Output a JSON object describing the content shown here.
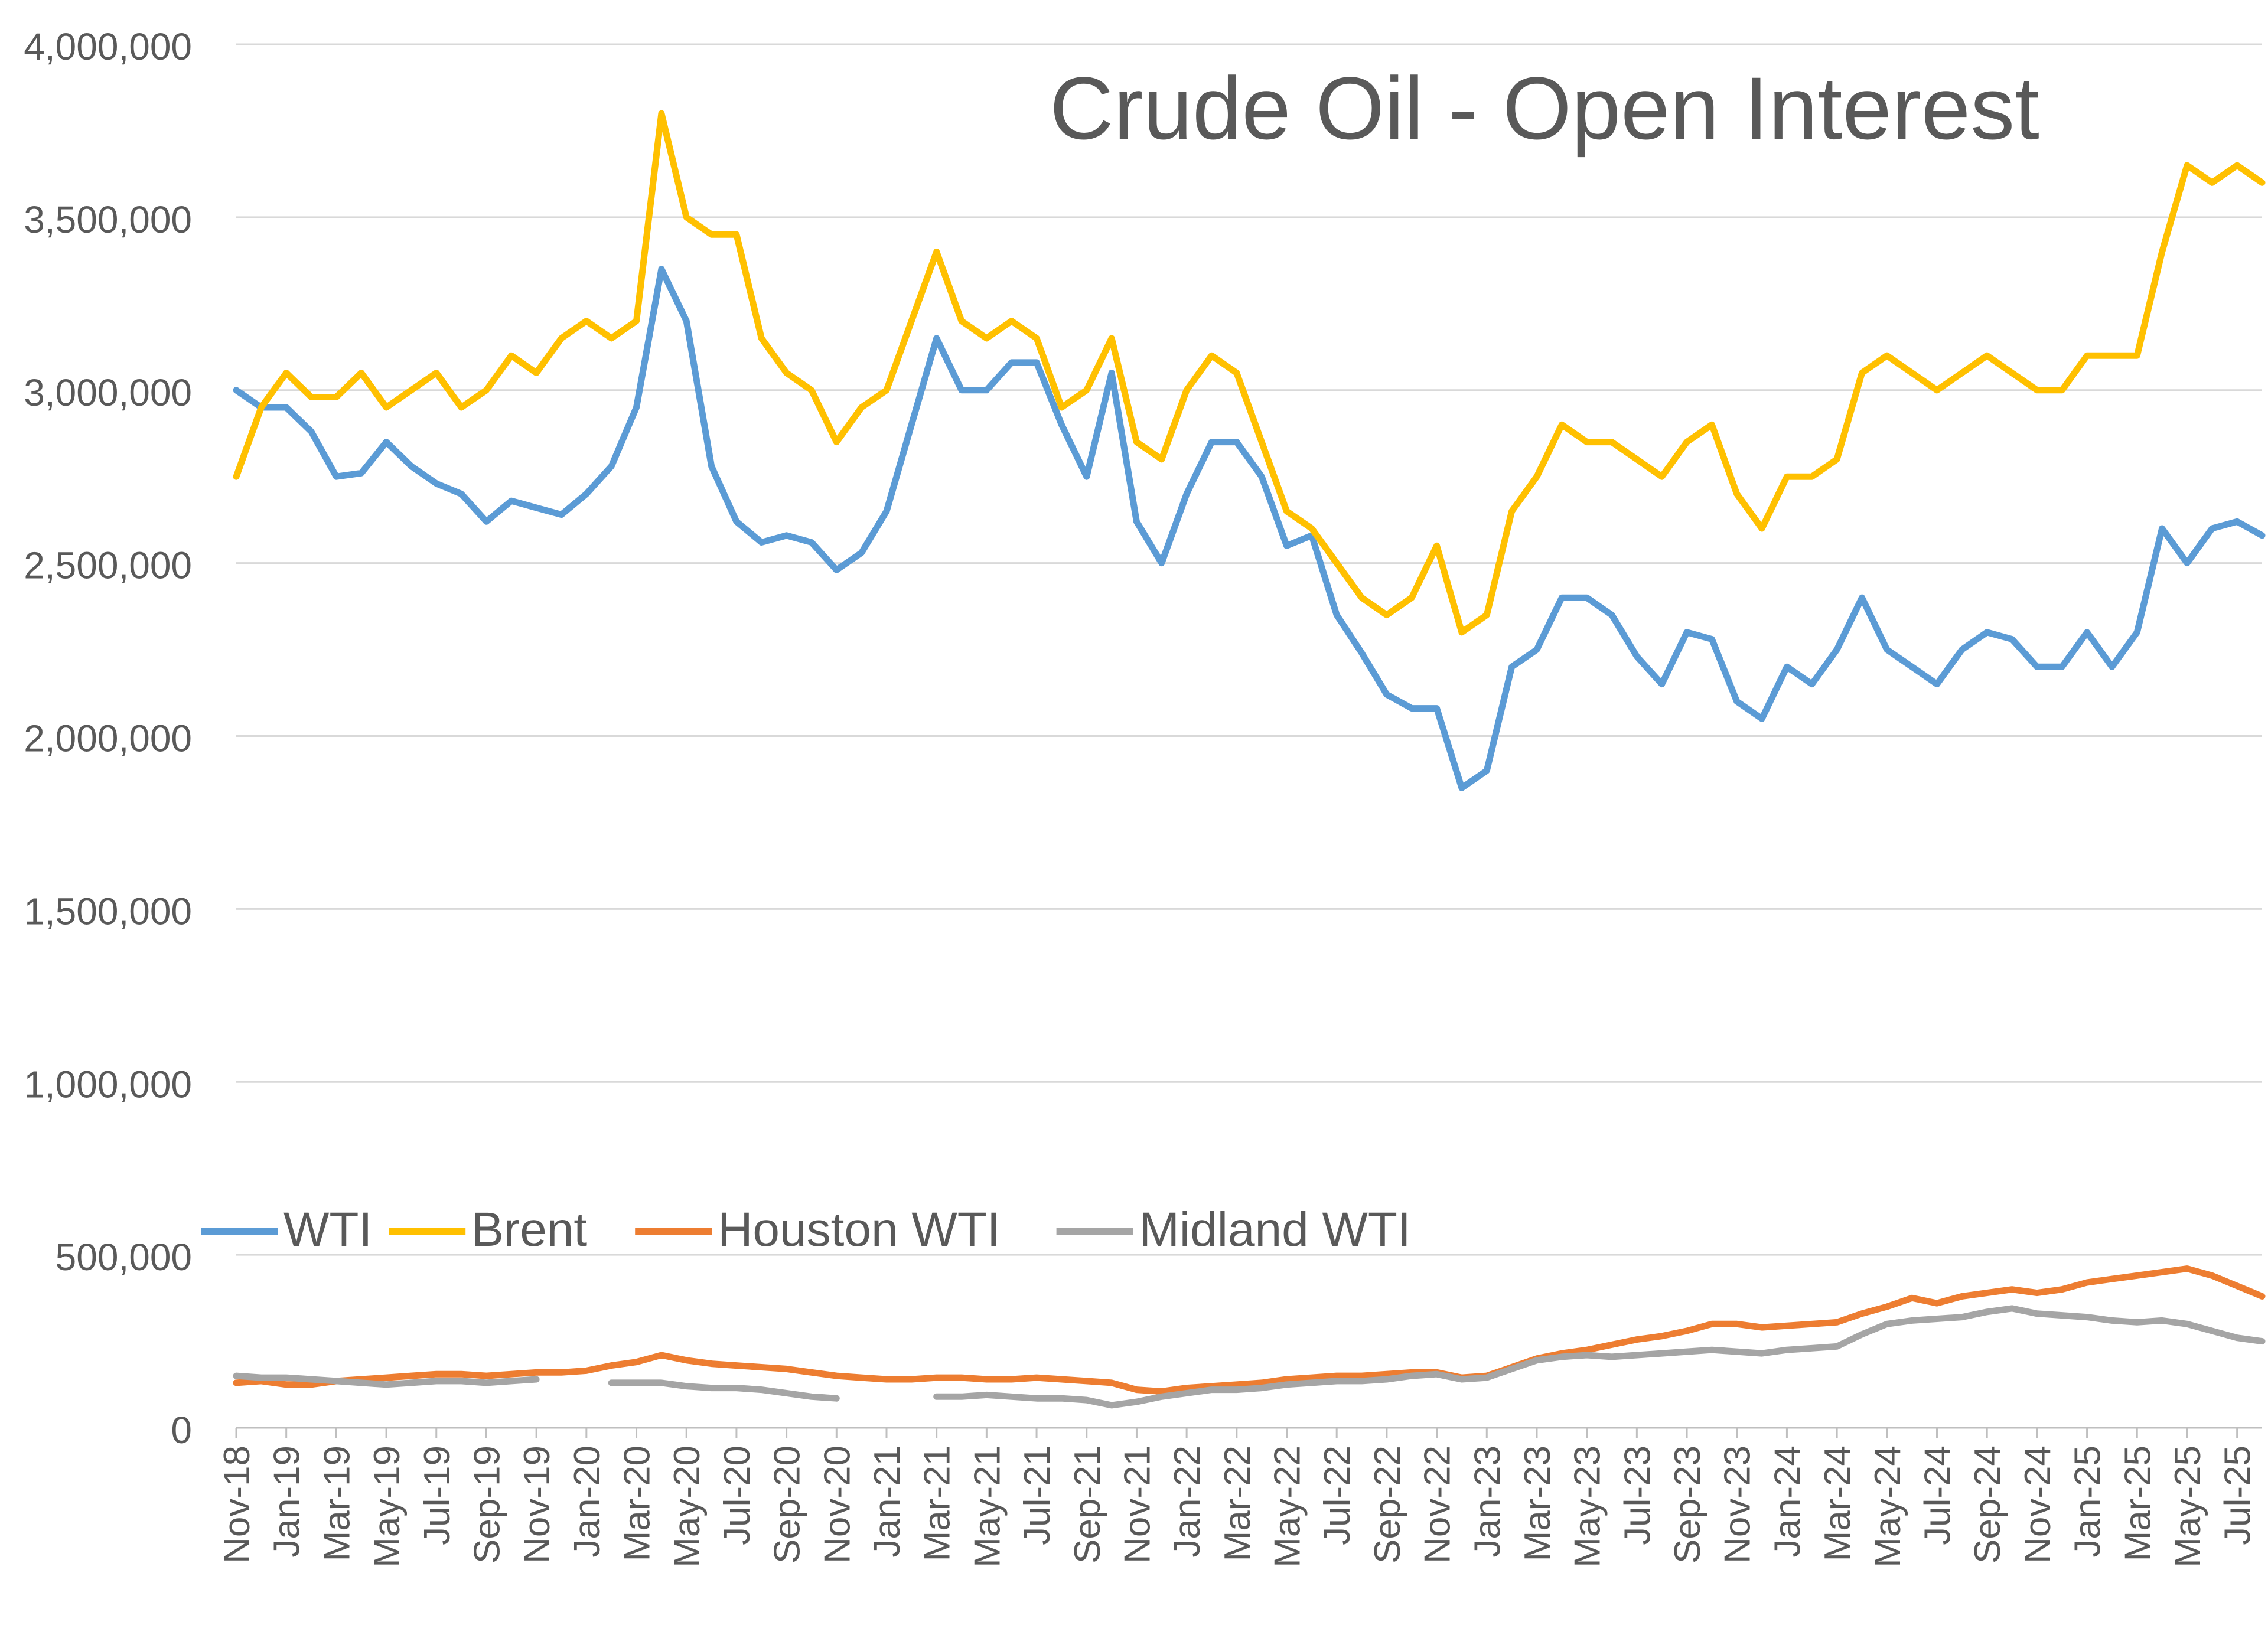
{
  "chart_data": {
    "type": "line",
    "title": "Crude Oil - Open Interest",
    "xlabel": "",
    "ylabel": "",
    "ylim": [
      0,
      4000000
    ],
    "yticks": [
      0,
      500000,
      1000000,
      1500000,
      2000000,
      2500000,
      3000000,
      3500000,
      4000000
    ],
    "ytick_labels": [
      "0",
      "500,000",
      "1,000,000",
      "1,500,000",
      "2,000,000",
      "2,500,000",
      "3,000,000",
      "3,500,000",
      "4,000,000"
    ],
    "x_start": "Nov-18",
    "x_end": "Aug-25",
    "xtick_labels": [
      "Nov-18",
      "Jan-19",
      "Mar-19",
      "May-19",
      "Jul-19",
      "Sep-19",
      "Nov-19",
      "Jan-20",
      "Mar-20",
      "May-20",
      "Jul-20",
      "Sep-20",
      "Nov-20",
      "Jan-21",
      "Mar-21",
      "May-21",
      "Jul-21",
      "Sep-21",
      "Nov-21",
      "Jan-22",
      "Mar-22",
      "May-22",
      "Jul-22",
      "Sep-22",
      "Nov-22",
      "Jan-23",
      "Mar-23",
      "May-23",
      "Jul-23",
      "Sep-23",
      "Nov-23",
      "Jan-24",
      "Mar-24",
      "May-24",
      "Jul-24",
      "Sep-24",
      "Nov-24",
      "Jan-25",
      "Mar-25",
      "May-25",
      "Jul-25"
    ],
    "grid": true,
    "legend_position": "lower-left",
    "series": [
      {
        "name": "WTI",
        "color": "#5B9BD5",
        "x": [
          "Nov-18",
          "Dec-18",
          "Jan-19",
          "Feb-19",
          "Mar-19",
          "Apr-19",
          "May-19",
          "Jun-19",
          "Jul-19",
          "Aug-19",
          "Sep-19",
          "Oct-19",
          "Nov-19",
          "Dec-19",
          "Jan-20",
          "Feb-20",
          "Mar-20",
          "Apr-20",
          "May-20",
          "Jun-20",
          "Jul-20",
          "Aug-20",
          "Sep-20",
          "Oct-20",
          "Nov-20",
          "Dec-20",
          "Jan-21",
          "Feb-21",
          "Mar-21",
          "Apr-21",
          "May-21",
          "Jun-21",
          "Jul-21",
          "Aug-21",
          "Sep-21",
          "Oct-21",
          "Nov-21",
          "Dec-21",
          "Jan-22",
          "Feb-22",
          "Mar-22",
          "Apr-22",
          "May-22",
          "Jun-22",
          "Jul-22",
          "Aug-22",
          "Sep-22",
          "Oct-22",
          "Nov-22",
          "Dec-22",
          "Jan-23",
          "Feb-23",
          "Mar-23",
          "Apr-23",
          "May-23",
          "Jun-23",
          "Jul-23",
          "Aug-23",
          "Sep-23",
          "Oct-23",
          "Nov-23",
          "Dec-23",
          "Jan-24",
          "Feb-24",
          "Mar-24",
          "Apr-24",
          "May-24",
          "Jun-24",
          "Jul-24",
          "Aug-24",
          "Sep-24",
          "Oct-24",
          "Nov-24",
          "Dec-24",
          "Jan-25",
          "Feb-25",
          "Mar-25",
          "Apr-25",
          "May-25",
          "Jun-25",
          "Jul-25",
          "Aug-25"
        ],
        "values": [
          3000000,
          2950000,
          2950000,
          2880000,
          2750000,
          2760000,
          2850000,
          2780000,
          2730000,
          2700000,
          2620000,
          2680000,
          2660000,
          2640000,
          2700000,
          2780000,
          2950000,
          3350000,
          3200000,
          2780000,
          2620000,
          2560000,
          2580000,
          2560000,
          2480000,
          2530000,
          2650000,
          2900000,
          3150000,
          3000000,
          3000000,
          3080000,
          3080000,
          2900000,
          2750000,
          3050000,
          2620000,
          2500000,
          2700000,
          2850000,
          2850000,
          2750000,
          2550000,
          2580000,
          2350000,
          2240000,
          2120000,
          2080000,
          2080000,
          1850000,
          1900000,
          2200000,
          2250000,
          2400000,
          2400000,
          2350000,
          2230000,
          2150000,
          2300000,
          2280000,
          2100000,
          2050000,
          2200000,
          2150000,
          2250000,
          2400000,
          2250000,
          2200000,
          2150000,
          2250000,
          2300000,
          2280000,
          2200000,
          2200000,
          2300000,
          2200000,
          2300000,
          2600000,
          2500000,
          2600000,
          2620000,
          2580000
        ]
      },
      {
        "name": "Brent",
        "color": "#FFC000",
        "x": [
          "Nov-18",
          "Dec-18",
          "Jan-19",
          "Feb-19",
          "Mar-19",
          "Apr-19",
          "May-19",
          "Jun-19",
          "Jul-19",
          "Aug-19",
          "Sep-19",
          "Oct-19",
          "Nov-19",
          "Dec-19",
          "Jan-20",
          "Feb-20",
          "Mar-20",
          "Apr-20",
          "May-20",
          "Jun-20",
          "Jul-20",
          "Aug-20",
          "Sep-20",
          "Oct-20",
          "Nov-20",
          "Dec-20",
          "Jan-21",
          "Feb-21",
          "Mar-21",
          "Apr-21",
          "May-21",
          "Jun-21",
          "Jul-21",
          "Aug-21",
          "Sep-21",
          "Oct-21",
          "Nov-21",
          "Dec-21",
          "Jan-22",
          "Feb-22",
          "Mar-22",
          "Apr-22",
          "May-22",
          "Jun-22",
          "Jul-22",
          "Aug-22",
          "Sep-22",
          "Oct-22",
          "Nov-22",
          "Dec-22",
          "Jan-23",
          "Feb-23",
          "Mar-23",
          "Apr-23",
          "May-23",
          "Jun-23",
          "Jul-23",
          "Aug-23",
          "Sep-23",
          "Oct-23",
          "Nov-23",
          "Dec-23",
          "Jan-24",
          "Feb-24",
          "Mar-24",
          "Apr-24",
          "May-24",
          "Jun-24",
          "Jul-24",
          "Aug-24",
          "Sep-24",
          "Oct-24",
          "Nov-24",
          "Dec-24",
          "Jan-25",
          "Feb-25",
          "Mar-25",
          "Apr-25",
          "May-25",
          "Jun-25",
          "Jul-25",
          "Aug-25"
        ],
        "values": [
          2750000,
          2950000,
          3050000,
          2980000,
          2980000,
          3050000,
          2950000,
          3000000,
          3050000,
          2950000,
          3000000,
          3100000,
          3050000,
          3150000,
          3200000,
          3150000,
          3200000,
          3800000,
          3500000,
          3450000,
          3450000,
          3150000,
          3050000,
          3000000,
          2850000,
          2950000,
          3000000,
          3200000,
          3400000,
          3200000,
          3150000,
          3200000,
          3150000,
          2950000,
          3000000,
          3150000,
          2850000,
          2800000,
          3000000,
          3100000,
          3050000,
          2850000,
          2650000,
          2600000,
          2500000,
          2400000,
          2350000,
          2400000,
          2550000,
          2300000,
          2350000,
          2650000,
          2750000,
          2900000,
          2850000,
          2850000,
          2800000,
          2750000,
          2850000,
          2900000,
          2700000,
          2600000,
          2750000,
          2750000,
          2800000,
          3050000,
          3100000,
          3050000,
          3000000,
          3050000,
          3100000,
          3050000,
          3000000,
          3000000,
          3100000,
          3100000,
          3100000,
          3400000,
          3650000,
          3600000,
          3650000,
          3600000
        ]
      },
      {
        "name": "Houston WTI",
        "color": "#ED7D31",
        "x": [
          "Nov-18",
          "Dec-18",
          "Jan-19",
          "Feb-19",
          "Mar-19",
          "Apr-19",
          "May-19",
          "Jun-19",
          "Jul-19",
          "Aug-19",
          "Sep-19",
          "Oct-19",
          "Nov-19",
          "Dec-19",
          "Jan-20",
          "Feb-20",
          "Mar-20",
          "Apr-20",
          "May-20",
          "Jun-20",
          "Jul-20",
          "Aug-20",
          "Sep-20",
          "Oct-20",
          "Nov-20",
          "Dec-20",
          "Jan-21",
          "Feb-21",
          "Mar-21",
          "Apr-21",
          "May-21",
          "Jun-21",
          "Jul-21",
          "Aug-21",
          "Sep-21",
          "Oct-21",
          "Nov-21",
          "Dec-21",
          "Jan-22",
          "Feb-22",
          "Mar-22",
          "Apr-22",
          "May-22",
          "Jun-22",
          "Jul-22",
          "Aug-22",
          "Sep-22",
          "Oct-22",
          "Nov-22",
          "Dec-22",
          "Jan-23",
          "Feb-23",
          "Mar-23",
          "Apr-23",
          "May-23",
          "Jun-23",
          "Jul-23",
          "Aug-23",
          "Sep-23",
          "Oct-23",
          "Nov-23",
          "Dec-23",
          "Jan-24",
          "Feb-24",
          "Mar-24",
          "Apr-24",
          "May-24",
          "Jun-24",
          "Jul-24",
          "Aug-24",
          "Sep-24",
          "Oct-24",
          "Nov-24",
          "Dec-24",
          "Jan-25",
          "Feb-25",
          "Mar-25",
          "Apr-25",
          "May-25",
          "Jun-25",
          "Jul-25",
          "Aug-25"
        ],
        "values": [
          130000,
          135000,
          125000,
          125000,
          135000,
          140000,
          145000,
          150000,
          155000,
          155000,
          150000,
          155000,
          160000,
          160000,
          165000,
          180000,
          190000,
          210000,
          195000,
          185000,
          180000,
          175000,
          170000,
          160000,
          150000,
          145000,
          140000,
          140000,
          145000,
          145000,
          140000,
          140000,
          145000,
          140000,
          135000,
          130000,
          110000,
          105000,
          115000,
          120000,
          125000,
          130000,
          140000,
          145000,
          150000,
          150000,
          155000,
          160000,
          160000,
          145000,
          150000,
          175000,
          200000,
          215000,
          225000,
          240000,
          255000,
          265000,
          280000,
          300000,
          300000,
          290000,
          295000,
          300000,
          305000,
          330000,
          350000,
          375000,
          360000,
          380000,
          390000,
          400000,
          390000,
          400000,
          420000,
          430000,
          440000,
          450000,
          460000,
          440000,
          410000,
          380000
        ]
      },
      {
        "name": "Midland WTI",
        "color": "#A5A5A5",
        "x": [
          "Nov-18",
          "Dec-18",
          "Jan-19",
          "Feb-19",
          "Mar-19",
          "Apr-19",
          "May-19",
          "Jun-19",
          "Jul-19",
          "Aug-19",
          "Sep-19",
          "Oct-19",
          "Nov-19",
          "Dec-19",
          "Jan-20",
          "Feb-20",
          "Mar-20",
          "Apr-20",
          "May-20",
          "Jun-20",
          "Jul-20",
          "Aug-20",
          "Sep-20",
          "Oct-20",
          "Nov-20",
          "Dec-20",
          "Jan-21",
          "Feb-21",
          "Mar-21",
          "Apr-21",
          "May-21",
          "Jun-21",
          "Jul-21",
          "Aug-21",
          "Sep-21",
          "Oct-21",
          "Nov-21",
          "Dec-21",
          "Jan-22",
          "Feb-22",
          "Mar-22",
          "Apr-22",
          "May-22",
          "Jun-22",
          "Jul-22",
          "Aug-22",
          "Sep-22",
          "Oct-22",
          "Nov-22",
          "Dec-22",
          "Jan-23",
          "Feb-23",
          "Mar-23",
          "Apr-23",
          "May-23",
          "Jun-23",
          "Jul-23",
          "Aug-23",
          "Sep-23",
          "Oct-23",
          "Nov-23",
          "Dec-23",
          "Jan-24",
          "Feb-24",
          "Mar-24",
          "Apr-24",
          "May-24",
          "Jun-24",
          "Jul-24",
          "Aug-24",
          "Sep-24",
          "Oct-24",
          "Nov-24",
          "Dec-24",
          "Jan-25",
          "Feb-25",
          "Mar-25",
          "Apr-25",
          "May-25",
          "Jun-25",
          "Jul-25",
          "Aug-25"
        ],
        "values": [
          150000,
          145000,
          145000,
          140000,
          135000,
          130000,
          125000,
          130000,
          135000,
          135000,
          130000,
          135000,
          140000,
          null,
          null,
          130000,
          130000,
          130000,
          120000,
          115000,
          115000,
          110000,
          100000,
          90000,
          85000,
          null,
          null,
          null,
          90000,
          90000,
          95000,
          90000,
          85000,
          85000,
          80000,
          65000,
          75000,
          90000,
          100000,
          110000,
          110000,
          115000,
          125000,
          130000,
          135000,
          135000,
          140000,
          150000,
          155000,
          140000,
          145000,
          170000,
          195000,
          205000,
          210000,
          205000,
          210000,
          215000,
          220000,
          225000,
          220000,
          215000,
          225000,
          230000,
          235000,
          270000,
          300000,
          310000,
          315000,
          320000,
          335000,
          345000,
          330000,
          325000,
          320000,
          310000,
          305000,
          310000,
          300000,
          280000,
          260000,
          250000
        ]
      }
    ]
  }
}
